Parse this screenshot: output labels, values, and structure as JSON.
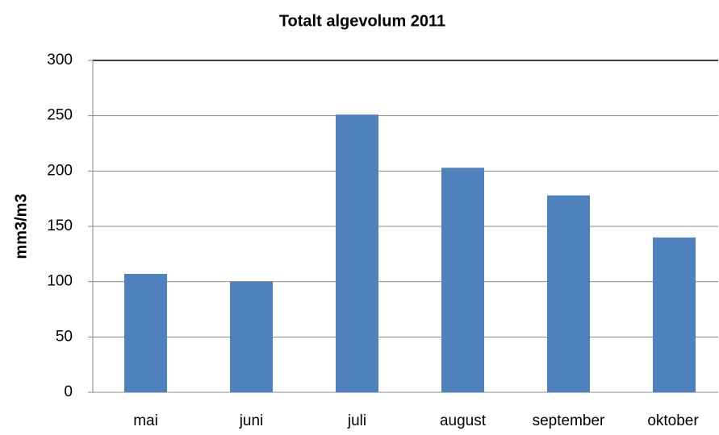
{
  "chart_data": {
    "type": "bar",
    "title": "Totalt algevolum 2011",
    "y_label": "mm3/m3",
    "categories": [
      "mai",
      "juni",
      "juli",
      "august",
      "september",
      "oktober"
    ],
    "values": [
      107,
      100,
      251,
      203,
      178,
      140
    ],
    "color": "#4f81bd",
    "ylim": [
      0,
      300
    ],
    "yticks": [
      0,
      50,
      100,
      150,
      200,
      250,
      300
    ],
    "grid": true
  }
}
